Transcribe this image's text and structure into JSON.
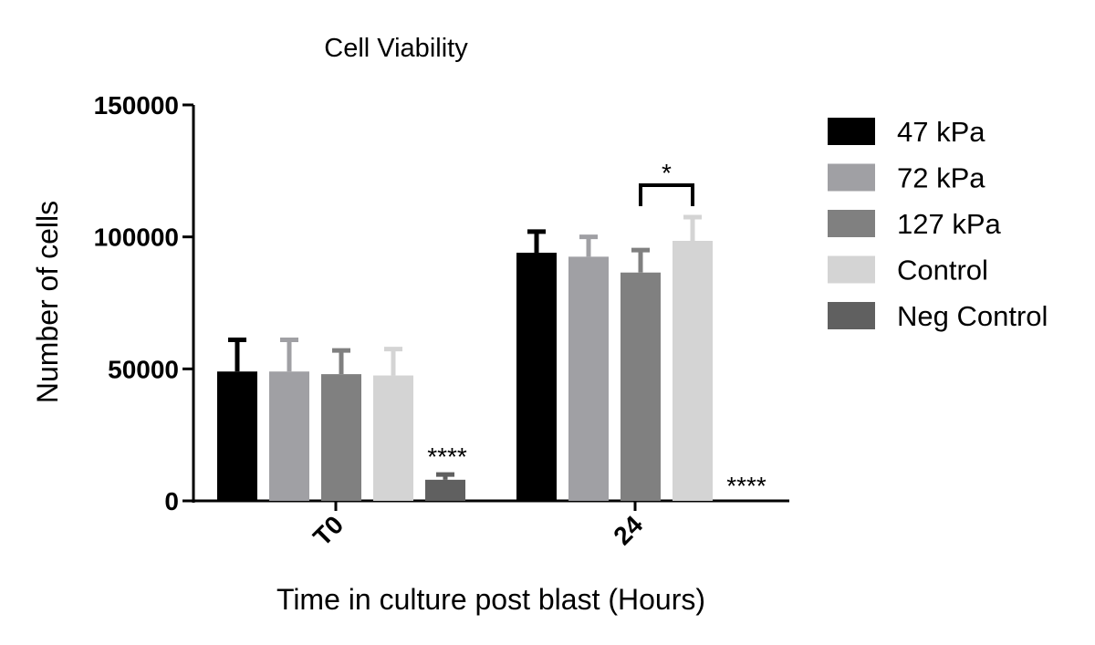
{
  "chart_data": {
    "type": "bar",
    "title": "Cell Viability",
    "xlabel": "Time in culture post blast (Hours)",
    "ylabel": "Number of cells",
    "ylim": [
      0,
      150000
    ],
    "yticks": [
      0,
      50000,
      100000,
      150000
    ],
    "ytick_labels": [
      "0",
      "50000",
      "100000",
      "150000"
    ],
    "categories": [
      "T0",
      "24"
    ],
    "series": [
      {
        "name": "47 kPa",
        "color": "#000000",
        "values": [
          49000,
          94000
        ],
        "errors": [
          12000,
          8000
        ]
      },
      {
        "name": "72 kPa",
        "color": "#a0a0a4",
        "values": [
          49000,
          92500
        ],
        "errors": [
          12000,
          7500
        ]
      },
      {
        "name": "127 kPa",
        "color": "#808080",
        "values": [
          48000,
          86500
        ],
        "errors": [
          9000,
          8500
        ]
      },
      {
        "name": "Control",
        "color": "#d4d4d4",
        "values": [
          47500,
          98500
        ],
        "errors": [
          10000,
          9000
        ]
      },
      {
        "name": "Neg Control",
        "color": "#606060",
        "values": [
          8000,
          0
        ],
        "errors": [
          2000,
          0
        ]
      }
    ],
    "annotations": [
      {
        "text": "****",
        "category": "T0",
        "series": "Neg Control"
      },
      {
        "text": "****",
        "category": "24",
        "series": "Neg Control"
      },
      {
        "text": "*",
        "category": "24",
        "bracket_from": "127 kPa",
        "bracket_to": "Control"
      }
    ],
    "legend_position": "right"
  }
}
